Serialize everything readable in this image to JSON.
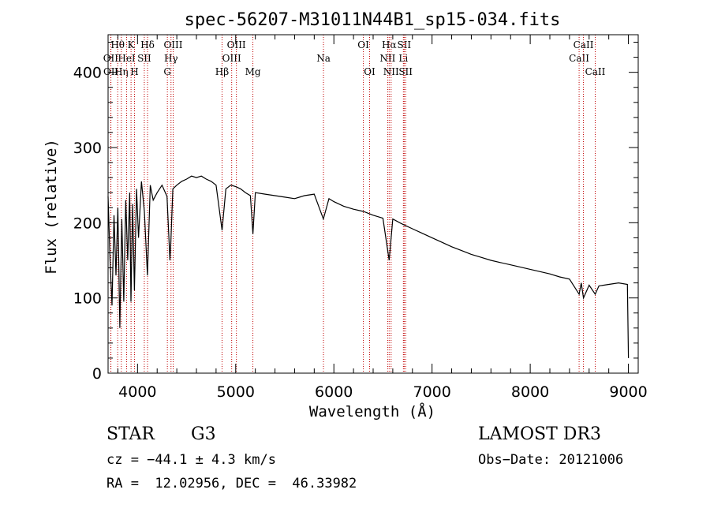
{
  "chart_data": {
    "type": "line",
    "title": "spec-56207-M31011N44B1_sp15-034.fits",
    "xlabel": "Wavelength (Å)",
    "ylabel": "Flux (relative)",
    "xlim": [
      3700,
      9100
    ],
    "ylim": [
      0,
      450
    ],
    "xticks": [
      4000,
      5000,
      6000,
      7000,
      8000,
      9000
    ],
    "yticks": [
      0,
      100,
      200,
      300,
      400
    ],
    "grid": false,
    "series": [
      {
        "name": "flux",
        "x": [
          3700,
          3720,
          3740,
          3760,
          3780,
          3800,
          3820,
          3840,
          3860,
          3880,
          3900,
          3920,
          3933,
          3950,
          3968,
          3990,
          4010,
          4040,
          4070,
          4101,
          4130,
          4160,
          4200,
          4250,
          4300,
          4330,
          4340,
          4360,
          4400,
          4450,
          4500,
          4550,
          4600,
          4650,
          4700,
          4750,
          4800,
          4861,
          4900,
          4950,
          5000,
          5050,
          5100,
          5150,
          5175,
          5200,
          5300,
          5400,
          5500,
          5600,
          5700,
          5800,
          5893,
          5950,
          6000,
          6100,
          6200,
          6300,
          6400,
          6500,
          6563,
          6600,
          6700,
          6800,
          6900,
          7000,
          7100,
          7200,
          7300,
          7400,
          7500,
          7600,
          7700,
          7800,
          7900,
          8000,
          8100,
          8200,
          8300,
          8400,
          8498,
          8520,
          8542,
          8600,
          8662,
          8700,
          8800,
          8900,
          8990,
          9000
        ],
        "y": [
          235,
          150,
          90,
          210,
          130,
          220,
          60,
          205,
          95,
          230,
          150,
          240,
          95,
          225,
          110,
          245,
          180,
          255,
          215,
          130,
          250,
          230,
          240,
          250,
          235,
          150,
          175,
          245,
          250,
          255,
          258,
          262,
          260,
          262,
          258,
          255,
          250,
          190,
          245,
          250,
          248,
          245,
          240,
          236,
          185,
          240,
          238,
          236,
          234,
          232,
          236,
          238,
          205,
          232,
          228,
          222,
          218,
          215,
          210,
          206,
          150,
          205,
          198,
          192,
          186,
          180,
          174,
          168,
          163,
          158,
          154,
          150,
          147,
          144,
          141,
          138,
          135,
          132,
          128,
          125,
          105,
          120,
          100,
          117,
          105,
          116,
          118,
          120,
          118,
          20
        ]
      }
    ],
    "lines": [
      {
        "name": "OII",
        "wave": 3727,
        "row": 1
      },
      {
        "name": "OII",
        "wave": 3729,
        "row": 2
      },
      {
        "name": "Hθ",
        "wave": 3798,
        "row": 0
      },
      {
        "name": "Hη",
        "wave": 3835,
        "row": 2
      },
      {
        "name": "HeI",
        "wave": 3889,
        "row": 1
      },
      {
        "name": "K",
        "wave": 3934,
        "row": 0
      },
      {
        "name": "H",
        "wave": 3969,
        "row": 2
      },
      {
        "name": "SII",
        "wave": 4069,
        "row": 1
      },
      {
        "name": "Hδ",
        "wave": 4102,
        "row": 0
      },
      {
        "name": "G",
        "wave": 4304,
        "row": 2
      },
      {
        "name": "Hγ",
        "wave": 4341,
        "row": 1
      },
      {
        "name": "OIII",
        "wave": 4363,
        "row": 0
      },
      {
        "name": "Hβ",
        "wave": 4861,
        "row": 2
      },
      {
        "name": "OIII",
        "wave": 4959,
        "row": 1
      },
      {
        "name": "OIII",
        "wave": 5007,
        "row": 0
      },
      {
        "name": "Mg",
        "wave": 5175,
        "row": 2
      },
      {
        "name": "Na",
        "wave": 5894,
        "row": 1
      },
      {
        "name": "OI",
        "wave": 6300,
        "row": 0
      },
      {
        "name": "OI",
        "wave": 6364,
        "row": 2
      },
      {
        "name": "NII",
        "wave": 6548,
        "row": 1
      },
      {
        "name": "Hα",
        "wave": 6563,
        "row": 0
      },
      {
        "name": "NII",
        "wave": 6583,
        "row": 2
      },
      {
        "name": "Li",
        "wave": 6708,
        "row": 1
      },
      {
        "name": "SII",
        "wave": 6716,
        "row": 0
      },
      {
        "name": "SII",
        "wave": 6731,
        "row": 2
      },
      {
        "name": "CaII",
        "wave": 8498,
        "row": 1
      },
      {
        "name": "CaII",
        "wave": 8542,
        "row": 0
      },
      {
        "name": "CaII",
        "wave": 8662,
        "row": 2
      }
    ]
  },
  "info": {
    "class": "STAR",
    "subclass": "G3",
    "survey": "LAMOST DR3",
    "cz": "cz = −44.1 ± 4.3 km/s",
    "radec": "RA =  12.02956, DEC =  46.33982",
    "obsdate": "Obs−Date: 20121006"
  }
}
